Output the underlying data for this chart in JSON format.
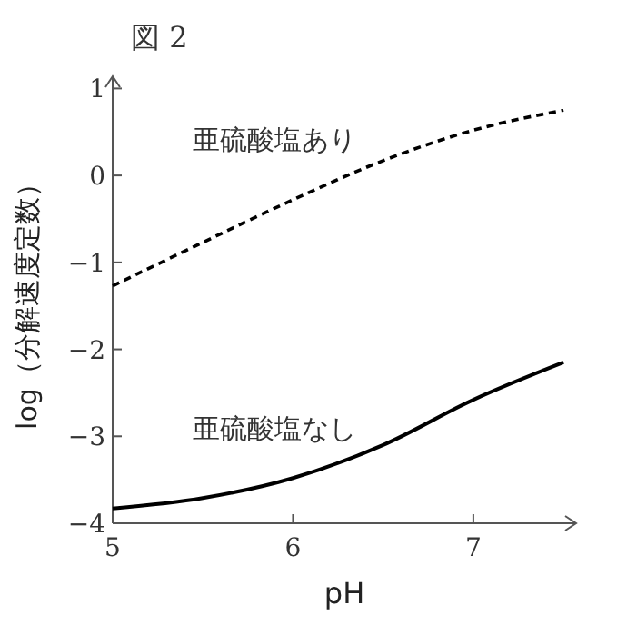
{
  "chart_data": {
    "type": "line",
    "title": "図 2",
    "xlabel": "pH",
    "ylabel": "log（分解速度定数）",
    "xlim": [
      5,
      7.57
    ],
    "ylim": [
      -4,
      1.14
    ],
    "xticks": [
      5,
      6,
      7
    ],
    "yticks": [
      {
        "value": -4,
        "label": "−4"
      },
      {
        "value": -3,
        "label": "−3"
      },
      {
        "value": -2,
        "label": "−2"
      },
      {
        "value": -1,
        "label": "−1"
      },
      0,
      1
    ],
    "grid": false,
    "marker": "none",
    "series": [
      {
        "name": "亜硫酸塩あり",
        "color": "#000000",
        "line_style": "dashed",
        "x": [
          5,
          5.5,
          6,
          6.5,
          7,
          7.5
        ],
        "values": [
          -1.27,
          -0.77,
          -0.28,
          0.17,
          0.52,
          0.75
        ]
      },
      {
        "name": "亜硫酸塩なし",
        "color": "#000000",
        "line_style": "solid",
        "x": [
          5,
          5.5,
          6,
          6.5,
          7,
          7.5
        ],
        "values": [
          -3.83,
          -3.71,
          -3.48,
          -3.1,
          -2.58,
          -2.15
        ]
      }
    ]
  }
}
